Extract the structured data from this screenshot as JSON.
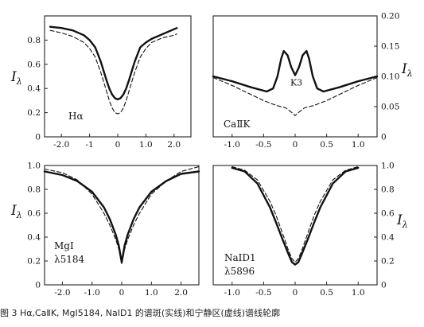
{
  "chart_data": [
    {
      "type": "line",
      "label_lines": [
        "Hα"
      ],
      "xlim": [
        -2.6,
        2.6
      ],
      "ylim": [
        0,
        1.0
      ],
      "x_ticks": [
        -2.0,
        -1,
        0,
        1.0,
        2.0
      ],
      "x_tick_labels": [
        "-2.0",
        "-1",
        "0",
        "1.0",
        "2.0"
      ],
      "y_ticks": [
        0,
        0.2,
        0.4,
        0.6,
        0.8
      ],
      "y_tick_labels": [
        "0",
        "0.2",
        "0.4",
        "0.6",
        "0.8"
      ],
      "y_axis_side": "left",
      "ylabel": "I",
      "ylabel_sub": "λ",
      "series": [
        {
          "style": "solid",
          "x": [
            -2.4,
            -2.0,
            -1.6,
            -1.2,
            -1.0,
            -0.8,
            -0.6,
            -0.4,
            -0.3,
            -0.2,
            -0.1,
            0,
            0.1,
            0.2,
            0.3,
            0.4,
            0.6,
            0.8,
            1.0,
            1.2,
            1.6,
            2.0,
            2.1
          ],
          "y": [
            0.91,
            0.9,
            0.88,
            0.84,
            0.8,
            0.74,
            0.62,
            0.47,
            0.4,
            0.35,
            0.32,
            0.31,
            0.32,
            0.35,
            0.4,
            0.47,
            0.62,
            0.74,
            0.78,
            0.81,
            0.85,
            0.89,
            0.9
          ]
        },
        {
          "style": "dashed",
          "x": [
            -2.4,
            -2.0,
            -1.6,
            -1.2,
            -1.0,
            -0.8,
            -0.6,
            -0.4,
            -0.3,
            -0.2,
            -0.1,
            0,
            0.1,
            0.2,
            0.3,
            0.4,
            0.6,
            0.8,
            1.0,
            1.2,
            1.6,
            2.0,
            2.1
          ],
          "y": [
            0.88,
            0.86,
            0.83,
            0.78,
            0.73,
            0.66,
            0.53,
            0.38,
            0.3,
            0.24,
            0.2,
            0.19,
            0.2,
            0.24,
            0.3,
            0.38,
            0.53,
            0.66,
            0.73,
            0.78,
            0.82,
            0.84,
            0.85
          ]
        }
      ]
    },
    {
      "type": "line",
      "label_lines": [
        "CaⅡK"
      ],
      "annotation": "K3",
      "xlim": [
        -1.3,
        1.3
      ],
      "ylim": [
        0,
        0.2
      ],
      "x_ticks": [
        -1.0,
        -0.5,
        0,
        0.5,
        1.0
      ],
      "x_tick_labels": [
        "-1.0",
        "-0.5",
        "0",
        "0.5",
        "1.0"
      ],
      "y_ticks": [
        0,
        0.05,
        0.1,
        0.15,
        0.2
      ],
      "y_tick_labels": [
        "0",
        "0.05",
        "0.10",
        "0.15",
        "0.20"
      ],
      "y_axis_side": "right",
      "ylabel": "I",
      "ylabel_sub": "λ",
      "series": [
        {
          "style": "solid",
          "x": [
            -1.3,
            -1.0,
            -0.7,
            -0.45,
            -0.35,
            -0.28,
            -0.22,
            -0.18,
            -0.12,
            -0.06,
            0,
            0.06,
            0.12,
            0.18,
            0.22,
            0.28,
            0.35,
            0.45,
            0.7,
            1.0,
            1.3
          ],
          "y": [
            0.1,
            0.092,
            0.082,
            0.075,
            0.08,
            0.1,
            0.13,
            0.142,
            0.135,
            0.115,
            0.102,
            0.115,
            0.135,
            0.142,
            0.13,
            0.1,
            0.08,
            0.075,
            0.082,
            0.092,
            0.1
          ]
        },
        {
          "style": "dashed",
          "x": [
            -1.3,
            -1.0,
            -0.7,
            -0.5,
            -0.3,
            -0.15,
            -0.05,
            0,
            0.05,
            0.15,
            0.3,
            0.5,
            0.7,
            1.0,
            1.3
          ],
          "y": [
            0.098,
            0.085,
            0.07,
            0.06,
            0.052,
            0.048,
            0.04,
            0.035,
            0.04,
            0.048,
            0.052,
            0.06,
            0.07,
            0.085,
            0.098
          ]
        }
      ]
    },
    {
      "type": "line",
      "label_lines": [
        "MgⅠ",
        "λ5184"
      ],
      "xlim": [
        -2.6,
        2.6
      ],
      "ylim": [
        0,
        1.0
      ],
      "x_ticks": [
        -2.0,
        -1.0,
        0,
        1.0,
        2.0
      ],
      "x_tick_labels": [
        "-2.0",
        "-1.0",
        "0",
        "1.0",
        "2.0"
      ],
      "y_ticks": [
        0,
        0.2,
        0.4,
        0.6,
        0.8,
        1.0
      ],
      "y_tick_labels": [
        "0",
        "0.2",
        "0.4",
        "0.6",
        "0.8",
        "1.0"
      ],
      "y_axis_side": "left",
      "ylabel": "I",
      "ylabel_sub": "λ",
      "series": [
        {
          "style": "solid",
          "x": [
            -2.6,
            -2.0,
            -1.5,
            -1.0,
            -0.6,
            -0.4,
            -0.2,
            -0.1,
            -0.05,
            0,
            0.05,
            0.1,
            0.2,
            0.4,
            0.6,
            1.0,
            1.5,
            2.0,
            2.6
          ],
          "y": [
            0.95,
            0.92,
            0.87,
            0.78,
            0.65,
            0.55,
            0.42,
            0.33,
            0.26,
            0.19,
            0.26,
            0.33,
            0.42,
            0.55,
            0.65,
            0.78,
            0.87,
            0.93,
            0.95
          ]
        },
        {
          "style": "dashed",
          "x": [
            -2.6,
            -2.0,
            -1.5,
            -1.0,
            -0.6,
            -0.4,
            -0.2,
            -0.1,
            -0.05,
            0,
            0.05,
            0.1,
            0.2,
            0.4,
            0.6,
            1.0,
            1.5,
            2.0,
            2.6
          ],
          "y": [
            0.97,
            0.94,
            0.88,
            0.76,
            0.6,
            0.5,
            0.38,
            0.3,
            0.24,
            0.17,
            0.24,
            0.3,
            0.38,
            0.5,
            0.6,
            0.76,
            0.87,
            0.95,
            0.99
          ]
        }
      ]
    },
    {
      "type": "line",
      "label_lines": [
        "NaⅠD1",
        "λ5896"
      ],
      "xlim": [
        -1.3,
        1.3
      ],
      "ylim": [
        0,
        1.0
      ],
      "x_ticks": [
        -1.0,
        -0.5,
        0,
        0.5,
        1.0
      ],
      "x_tick_labels": [
        "-1.0",
        "-0.5",
        "0",
        "0.5",
        "1.0"
      ],
      "y_ticks": [
        0,
        0.2,
        0.4,
        0.6,
        0.8,
        1.0
      ],
      "y_tick_labels": [
        "0",
        "0.2",
        "0.4",
        "0.6",
        "0.8",
        "1.0"
      ],
      "y_axis_side": "right",
      "ylabel": "I",
      "ylabel_sub": "λ",
      "series": [
        {
          "style": "solid",
          "x": [
            -1.0,
            -0.8,
            -0.6,
            -0.4,
            -0.3,
            -0.2,
            -0.1,
            -0.05,
            0,
            0.05,
            0.1,
            0.2,
            0.3,
            0.4,
            0.6,
            0.8,
            1.0
          ],
          "y": [
            0.98,
            0.95,
            0.85,
            0.65,
            0.52,
            0.38,
            0.25,
            0.19,
            0.17,
            0.19,
            0.25,
            0.38,
            0.52,
            0.65,
            0.85,
            0.95,
            0.98
          ]
        },
        {
          "style": "dashed",
          "x": [
            -1.0,
            -0.8,
            -0.6,
            -0.4,
            -0.3,
            -0.2,
            -0.1,
            -0.05,
            0,
            0.05,
            0.1,
            0.2,
            0.3,
            0.4,
            0.6,
            0.8,
            1.0
          ],
          "y": [
            0.99,
            0.96,
            0.88,
            0.7,
            0.58,
            0.43,
            0.28,
            0.22,
            0.19,
            0.22,
            0.28,
            0.43,
            0.58,
            0.7,
            0.88,
            0.96,
            0.99
          ]
        }
      ]
    }
  ],
  "caption": "图 3  Hα,CaⅡK, MgⅠ5184, NaⅠD1 的谱斑(实线)和宁静区(虚线)谱线轮廓"
}
